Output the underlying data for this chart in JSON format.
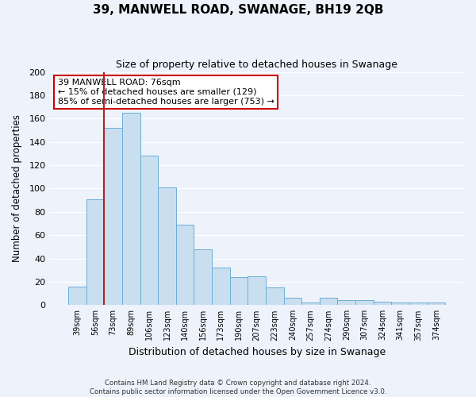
{
  "title": "39, MANWELL ROAD, SWANAGE, BH19 2QB",
  "subtitle": "Size of property relative to detached houses in Swanage",
  "xlabel": "Distribution of detached houses by size in Swanage",
  "ylabel": "Number of detached properties",
  "categories": [
    "39sqm",
    "56sqm",
    "73sqm",
    "89sqm",
    "106sqm",
    "123sqm",
    "140sqm",
    "156sqm",
    "173sqm",
    "190sqm",
    "207sqm",
    "223sqm",
    "240sqm",
    "257sqm",
    "274sqm",
    "290sqm",
    "307sqm",
    "324sqm",
    "341sqm",
    "357sqm",
    "374sqm"
  ],
  "values": [
    16,
    91,
    152,
    165,
    128,
    101,
    69,
    48,
    32,
    24,
    25,
    15,
    6,
    2,
    6,
    4,
    4,
    3,
    2,
    2,
    2
  ],
  "bar_color": "#c9dff0",
  "bar_edge_color": "#6aaed6",
  "background_color": "#eef2fb",
  "grid_color": "#d8e4f0",
  "red_line_index": 2,
  "red_line_color": "#b22222",
  "ylim": [
    0,
    200
  ],
  "yticks": [
    0,
    20,
    40,
    60,
    80,
    100,
    120,
    140,
    160,
    180,
    200
  ],
  "annotation_title": "39 MANWELL ROAD: 76sqm",
  "annotation_line1": "← 15% of detached houses are smaller (129)",
  "annotation_line2": "85% of semi-detached houses are larger (753) →",
  "annotation_box_color": "#ffffff",
  "annotation_box_edge": "#cc0000",
  "footer_line1": "Contains HM Land Registry data © Crown copyright and database right 2024.",
  "footer_line2": "Contains public sector information licensed under the Open Government Licence v3.0."
}
